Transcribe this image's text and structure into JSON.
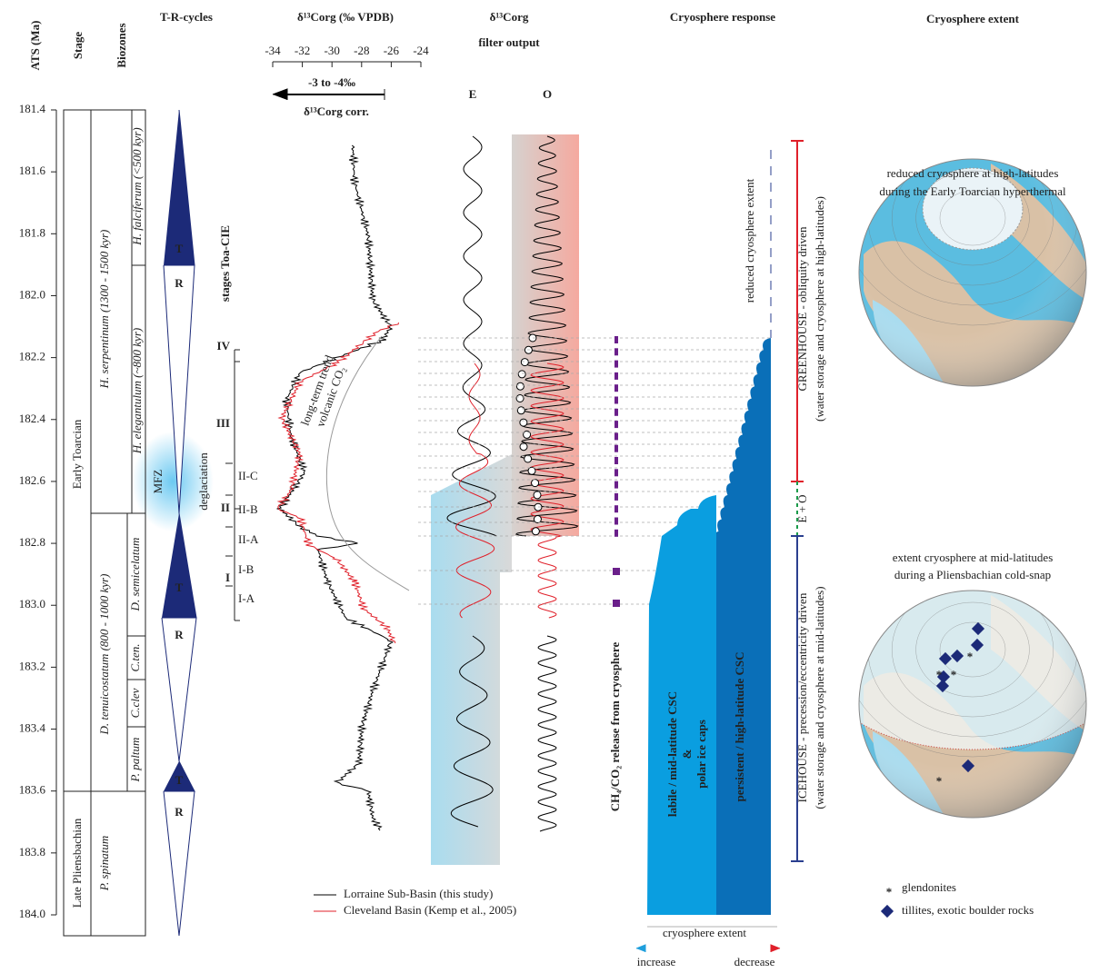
{
  "header": {
    "ats": "ATS (Ma)",
    "stage": "Stage",
    "biozones": "Biozones",
    "tr": "T-R-cycles",
    "d13c": "δ¹³Corg (‰ VPDB)",
    "filter_1": "δ¹³Corg",
    "filter_2": "filter output",
    "e": "E",
    "o": "O",
    "response": "Cryosphere response",
    "extent": "Cryosphere extent"
  },
  "age_ticks": [
    "181.4",
    "181.6",
    "181.8",
    "182.0",
    "182.2",
    "182.4",
    "182.6",
    "182.8",
    "183.0",
    "183.2",
    "183.4",
    "183.6",
    "183.8",
    "184.0"
  ],
  "d13c_ticks": [
    "-34",
    "-32",
    "-30",
    "-28",
    "-26",
    "-24"
  ],
  "correction": {
    "shift": "-3 to -4‰",
    "label": "δ¹³Corg corr."
  },
  "stages": {
    "early": "Early Toarcian",
    "late": "Late Pliensbachian"
  },
  "biozones": {
    "serpentinum": "H. serpentinum (1300 - 1500 kyr)",
    "falciferum": "H. falciferum (<500 kyr)",
    "elegantulum": "H. elegantulum (~800 kyr)",
    "tenuicostatum": "D. tenuicostatum (800 - 1000 kyr)",
    "semicelatum": "D. semicelatum",
    "cten": "C.ten.",
    "cclev": "C.clev",
    "paltum": "P. paltum",
    "spinatum": "P. spinatum"
  },
  "tr_labels": [
    "T",
    "R",
    "T",
    "R",
    "T",
    "R"
  ],
  "mfz": "MFZ",
  "deglaciation": "deglaciation",
  "toa_cie": {
    "title": "stages Toa-CIE",
    "major": [
      "IV",
      "III",
      "II",
      "I"
    ],
    "minor": [
      "II-C",
      "II-B",
      "II-A",
      "I-B",
      "I-A"
    ]
  },
  "trend": [
    "long-term trend",
    "volcanic CO₂"
  ],
  "legend": [
    "Lorraine Sub-Basin (this study)",
    "Cleveland Basin (Kemp et al., 2005)"
  ],
  "release": "CH₄/CO₂ release from cryosphere",
  "response": {
    "reduced": "reduced cryosphere extent",
    "labile_1": "labile / mid-latitude CSC",
    "labile_2": "&",
    "labile_3": "polar ice caps",
    "persistent": "persistent / high-latitude CSC",
    "axis": "cryosphere extent",
    "increase": "increase",
    "decrease": "decrease"
  },
  "regimes": {
    "greenhouse": "GREENHOUSE - obliquity driven",
    "greenhouse_note": "(water storage and cryosphere at high-latitudes)",
    "eo": "E + O",
    "icehouse": "ICEHOUSE - precession/eccentricity driven",
    "icehouse_note": "(water storage and cryosphere at mid-latitudes)"
  },
  "globes": {
    "top_1": "reduced cryosphere at high-latitudes",
    "top_2": "during the Early Toarcian hyperthermal",
    "bottom_1": "extent cryosphere at mid-latitudes",
    "bottom_2": "during a Pliensbachian cold-snap"
  },
  "globe_legend": {
    "glendonite_symbol": "*",
    "glendonites": "glendonites",
    "tillites": "tillites, exotic boulder rocks"
  }
}
